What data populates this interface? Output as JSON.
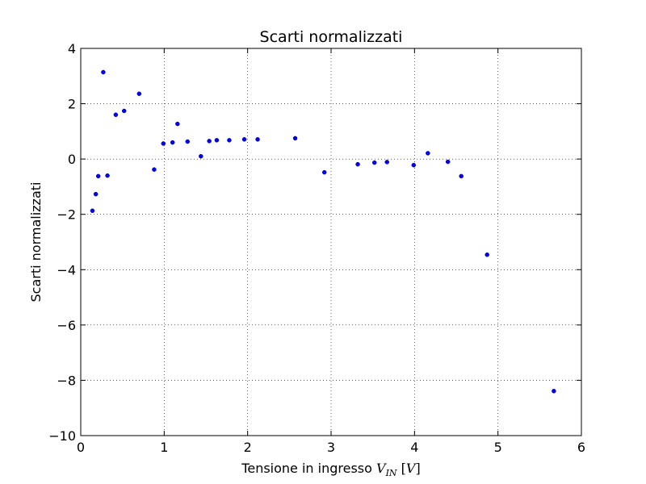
{
  "chart_data": {
    "type": "scatter",
    "title": "Scarti normalizzati",
    "xlabel": {
      "main": "Tensione in ingresso ",
      "var": "V",
      "sub": "IN",
      "unit": "V"
    },
    "ylabel": "Scarti normalizzati",
    "xlim": [
      0,
      6
    ],
    "ylim": [
      -10,
      4
    ],
    "xticks": [
      0,
      1,
      2,
      3,
      4,
      5,
      6
    ],
    "yticks": [
      -10,
      -8,
      -6,
      -4,
      -2,
      0,
      2,
      4
    ],
    "xtick_labels": [
      "0",
      "1",
      "2",
      "3",
      "4",
      "5",
      "6"
    ],
    "ytick_labels": [
      "−10",
      "−8",
      "−6",
      "−4",
      "−2",
      "0",
      "2",
      "4"
    ],
    "grid": true,
    "marker_color": "#0000ff",
    "points": [
      {
        "x": 0.14,
        "y": -1.87
      },
      {
        "x": 0.18,
        "y": -1.27
      },
      {
        "x": 0.21,
        "y": -0.62
      },
      {
        "x": 0.27,
        "y": 3.14
      },
      {
        "x": 0.32,
        "y": -0.6
      },
      {
        "x": 0.42,
        "y": 1.6
      },
      {
        "x": 0.52,
        "y": 1.74
      },
      {
        "x": 0.7,
        "y": 2.36
      },
      {
        "x": 0.88,
        "y": -0.38
      },
      {
        "x": 0.99,
        "y": 0.56
      },
      {
        "x": 1.1,
        "y": 0.6
      },
      {
        "x": 1.16,
        "y": 1.27
      },
      {
        "x": 1.28,
        "y": 0.63
      },
      {
        "x": 1.44,
        "y": 0.1
      },
      {
        "x": 1.54,
        "y": 0.65
      },
      {
        "x": 1.63,
        "y": 0.68
      },
      {
        "x": 1.78,
        "y": 0.68
      },
      {
        "x": 1.96,
        "y": 0.71
      },
      {
        "x": 2.12,
        "y": 0.71
      },
      {
        "x": 2.57,
        "y": 0.75
      },
      {
        "x": 2.92,
        "y": -0.48
      },
      {
        "x": 3.32,
        "y": -0.19
      },
      {
        "x": 3.52,
        "y": -0.13
      },
      {
        "x": 3.67,
        "y": -0.11
      },
      {
        "x": 3.99,
        "y": -0.22
      },
      {
        "x": 4.16,
        "y": 0.21
      },
      {
        "x": 4.4,
        "y": -0.1
      },
      {
        "x": 4.56,
        "y": -0.62
      },
      {
        "x": 4.87,
        "y": -3.46
      },
      {
        "x": 5.67,
        "y": -8.39
      }
    ]
  }
}
